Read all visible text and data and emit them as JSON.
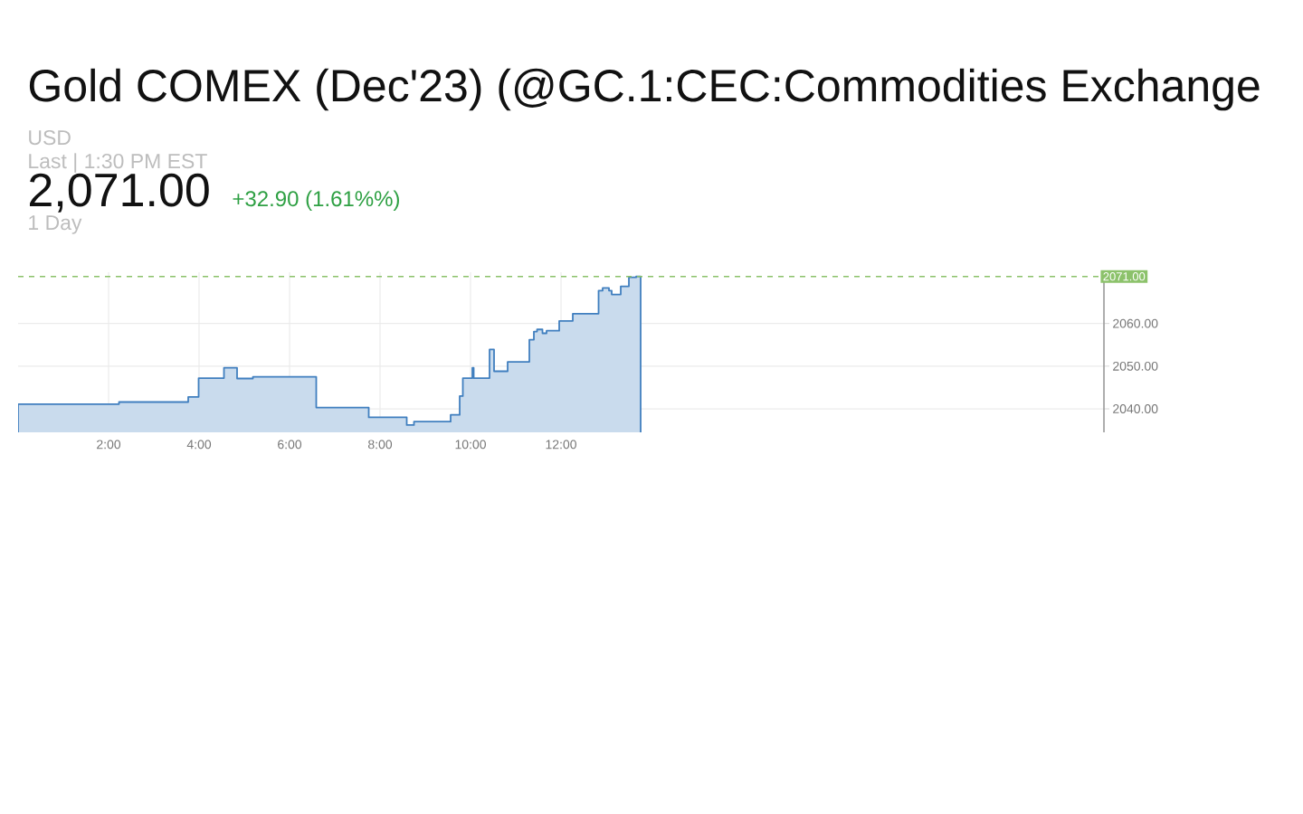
{
  "chart_data": {
    "type": "area",
    "title": "Gold COMEX (Dec'23) (@GC.1:CEC:Commodities Exchange",
    "annotations": [
      "USD",
      "Last | 1:30 PM EST",
      "2,071.00",
      "+32.90 (1.61%%)",
      "1 Day"
    ],
    "x": [
      0,
      2.23,
      3.76,
      3.99,
      4.55,
      4.84,
      5.19,
      6.59,
      7.75,
      8.59,
      8.75,
      9.56,
      9.76,
      9.83,
      10.04,
      10.07,
      10.42,
      10.52,
      10.82,
      11.3,
      11.4,
      11.47,
      11.59,
      11.68,
      11.96,
      12.26,
      12.83,
      12.92,
      13.06,
      13.12,
      13.32,
      13.5,
      13.66,
      13.76
    ],
    "values": [
      2041.1,
      2041.6,
      2042.8,
      2047.2,
      2049.6,
      2047.1,
      2047.5,
      2040.3,
      2038.0,
      2036.2,
      2037.0,
      2038.6,
      2043.0,
      2047.2,
      2049.6,
      2047.2,
      2053.9,
      2048.8,
      2051.0,
      2056.2,
      2058.1,
      2058.6,
      2057.7,
      2058.3,
      2060.6,
      2062.3,
      2067.7,
      2068.3,
      2067.7,
      2066.8,
      2068.7,
      2070.8,
      2071.0,
      2071.0
    ],
    "color": "#c9dbed",
    "xlim": [
      0,
      24
    ],
    "ylim": [
      2034.5,
      2072
    ],
    "xticks": [
      {
        "value": 2,
        "label": "2:00"
      },
      {
        "value": 4,
        "label": "4:00"
      },
      {
        "value": 6,
        "label": "6:00"
      },
      {
        "value": 8,
        "label": "8:00"
      },
      {
        "value": 10,
        "label": "10:00"
      },
      {
        "value": 12,
        "label": "12:00"
      }
    ],
    "yticks": [
      {
        "value": 2040,
        "label": "2040.00"
      },
      {
        "value": 2050,
        "label": "2050.00"
      },
      {
        "value": 2060,
        "label": "2060.00"
      }
    ],
    "grid": true,
    "ref_lines": [
      {
        "axis": "y",
        "value": 2071,
        "label": "2071.00",
        "color": "#8cc26b",
        "line_style": "dashed"
      }
    ]
  }
}
